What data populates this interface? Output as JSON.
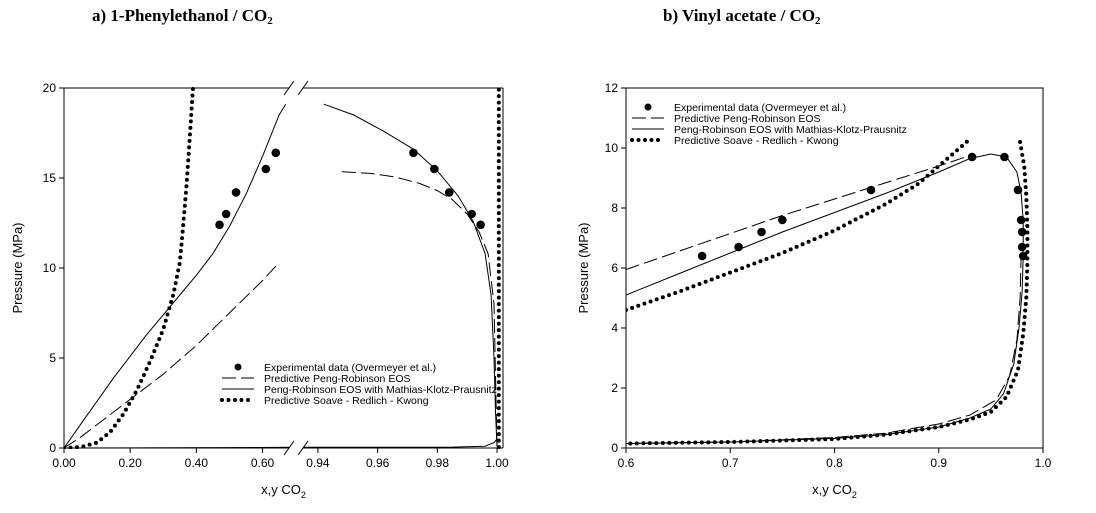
{
  "chart_data": [
    {
      "type": "line",
      "title": "a) 1-Phenylethanol / CO",
      "title_subscript": "2",
      "xlabel": "x,y CO",
      "xlabel_subscript": "2",
      "ylabel": "Pressure (MPa)",
      "broken_x_axis": true,
      "x_segments": [
        {
          "xlim": [
            0.0,
            0.68
          ],
          "ticks": [
            "0.00",
            "0.20",
            "0.40",
            "0.60"
          ],
          "tick_values": [
            0.0,
            0.2,
            0.4,
            0.6
          ]
        },
        {
          "xlim": [
            0.935,
            1.002
          ],
          "ticks": [
            "0.94",
            "0.96",
            "0.98",
            "1.00"
          ],
          "tick_values": [
            0.94,
            0.96,
            0.98,
            1.0
          ]
        }
      ],
      "ylim": [
        0,
        20
      ],
      "yticks": [
        "0",
        "5",
        "10",
        "15",
        "20"
      ],
      "ytick_values": [
        0,
        5,
        10,
        15,
        20
      ],
      "legend": "bottom-right",
      "series": [
        {
          "name": "Experimental data (Overmeyer et al.)",
          "style": "markers",
          "points": [
            [
              0.47,
              12.4
            ],
            [
              0.49,
              13.0
            ],
            [
              0.52,
              14.2
            ],
            [
              0.61,
              15.5
            ],
            [
              0.64,
              16.4
            ],
            [
              0.972,
              16.4
            ],
            [
              0.979,
              15.5
            ],
            [
              0.984,
              14.2
            ],
            [
              0.9915,
              13.0
            ],
            [
              0.9945,
              12.4
            ]
          ]
        },
        {
          "name": "Predictive Peng-Robinson EOS",
          "style": "dashed",
          "segments": [
            [
              [
                0,
                0
              ],
              [
                0.05,
                0.6
              ],
              [
                0.1,
                1.3
              ],
              [
                0.15,
                2.0
              ],
              [
                0.2,
                2.7
              ],
              [
                0.25,
                3.4
              ],
              [
                0.3,
                4.1
              ],
              [
                0.35,
                4.9
              ],
              [
                0.4,
                5.7
              ],
              [
                0.45,
                6.6
              ],
              [
                0.5,
                7.5
              ],
              [
                0.55,
                8.4
              ],
              [
                0.6,
                9.3
              ],
              [
                0.64,
                10.1
              ]
            ],
            [
              [
                0.948,
                15.35
              ],
              [
                0.958,
                15.25
              ],
              [
                0.966,
                15.05
              ],
              [
                0.974,
                14.7
              ],
              [
                0.98,
                14.3
              ],
              [
                0.985,
                13.8
              ],
              [
                0.99,
                13.0
              ],
              [
                0.994,
                12.0
              ],
              [
                0.997,
                10.8
              ],
              [
                0.999,
                8.0
              ],
              [
                0.9995,
                4.0
              ],
              [
                1.0,
                0.1
              ]
            ]
          ]
        },
        {
          "name": "Peng-Robinson EOS with Mathias-Klotz-Prausnitz",
          "style": "solid",
          "segments": [
            [
              [
                0,
                0
              ],
              [
                0.05,
                1.3
              ],
              [
                0.1,
                2.6
              ],
              [
                0.15,
                3.9
              ],
              [
                0.2,
                5.1
              ],
              [
                0.25,
                6.3
              ],
              [
                0.3,
                7.4
              ],
              [
                0.35,
                8.5
              ],
              [
                0.4,
                9.6
              ],
              [
                0.45,
                10.8
              ],
              [
                0.5,
                12.3
              ],
              [
                0.55,
                14.1
              ],
              [
                0.6,
                16.2
              ],
              [
                0.65,
                18.5
              ],
              [
                0.67,
                19.1
              ]
            ],
            [
              [
                0.942,
                19.1
              ],
              [
                0.952,
                18.5
              ],
              [
                0.962,
                17.6
              ],
              [
                0.972,
                16.6
              ],
              [
                0.98,
                15.4
              ],
              [
                0.987,
                14.0
              ],
              [
                0.992,
                12.6
              ],
              [
                0.996,
                10.8
              ],
              [
                0.998,
                8.5
              ],
              [
                0.999,
                5.0
              ],
              [
                0.9995,
                2.0
              ],
              [
                1.0,
                0.1
              ]
            ],
            [
              [
                0,
                0.0
              ],
              [
                0.6,
                0.03
              ],
              [
                0.68,
                0.04
              ]
            ],
            [
              [
                0.935,
                0.04
              ],
              [
                0.985,
                0.05
              ],
              [
                0.996,
                0.1
              ],
              [
                0.999,
                0.3
              ],
              [
                1.0,
                0.5
              ]
            ]
          ]
        },
        {
          "name": "Predictive Soave - Redlich - Kwong",
          "style": "dotted",
          "segments": [
            [
              [
                0,
                0
              ],
              [
                0.05,
                0.05
              ],
              [
                0.1,
                0.3
              ],
              [
                0.14,
                0.9
              ],
              [
                0.18,
                1.9
              ],
              [
                0.22,
                3.2
              ],
              [
                0.26,
                4.8
              ],
              [
                0.3,
                6.6
              ],
              [
                0.33,
                8.5
              ],
              [
                0.35,
                10.3
              ],
              [
                0.36,
                12.3
              ],
              [
                0.37,
                14.5
              ],
              [
                0.38,
                17.2
              ],
              [
                0.39,
                20.0
              ]
            ],
            [
              [
                1.0006,
                0.05
              ],
              [
                1.0006,
                5.0
              ],
              [
                1.0006,
                10.0
              ],
              [
                1.0006,
                15.0
              ],
              [
                1.0006,
                20.0
              ]
            ]
          ]
        }
      ]
    },
    {
      "type": "line",
      "title": "b) Vinyl acetate / CO",
      "title_subscript": "2",
      "xlabel": "x,y CO",
      "xlabel_subscript": "2",
      "ylabel": "Pressure (MPa)",
      "xlim": [
        0.6,
        1.0
      ],
      "xticks": [
        "0.6",
        "0.7",
        "0.8",
        "0.9",
        "1.0"
      ],
      "xtick_values": [
        0.6,
        0.7,
        0.8,
        0.9,
        1.0
      ],
      "ylim": [
        0,
        12
      ],
      "yticks": [
        "0",
        "2",
        "4",
        "6",
        "8",
        "10",
        "12"
      ],
      "ytick_values": [
        0,
        2,
        4,
        6,
        8,
        10,
        12
      ],
      "legend": "top-left",
      "series": [
        {
          "name": "Experimental data (Overmeyer et al.)",
          "style": "markers",
          "points": [
            [
              0.673,
              6.4
            ],
            [
              0.708,
              6.7
            ],
            [
              0.73,
              7.2
            ],
            [
              0.75,
              7.6
            ],
            [
              0.835,
              8.6
            ],
            [
              0.932,
              9.7
            ],
            [
              0.963,
              9.7
            ],
            [
              0.976,
              8.6
            ],
            [
              0.979,
              7.6
            ],
            [
              0.98,
              7.2
            ],
            [
              0.98,
              6.7
            ],
            [
              0.981,
              6.4
            ]
          ]
        },
        {
          "name": "Predictive Peng-Robinson EOS",
          "style": "dashed",
          "segments": [
            [
              [
                0.6,
                5.95
              ],
              [
                0.65,
                6.55
              ],
              [
                0.7,
                7.15
              ],
              [
                0.75,
                7.75
              ],
              [
                0.8,
                8.3
              ],
              [
                0.85,
                8.85
              ],
              [
                0.9,
                9.4
              ],
              [
                0.93,
                9.75
              ]
            ],
            [
              [
                0.6,
                0.15
              ],
              [
                0.7,
                0.2
              ],
              [
                0.8,
                0.35
              ],
              [
                0.85,
                0.5
              ],
              [
                0.9,
                0.8
              ],
              [
                0.93,
                1.1
              ],
              [
                0.955,
                1.6
              ],
              [
                0.968,
                2.4
              ],
              [
                0.975,
                3.6
              ],
              [
                0.978,
                5.0
              ],
              [
                0.979,
                6.4
              ]
            ]
          ]
        },
        {
          "name": "Peng-Robinson EOS with Mathias-Klotz-Prausnitz",
          "style": "solid",
          "segments": [
            [
              [
                0.6,
                5.1
              ],
              [
                0.65,
                5.8
              ],
              [
                0.7,
                6.5
              ],
              [
                0.75,
                7.2
              ],
              [
                0.8,
                7.85
              ],
              [
                0.85,
                8.5
              ],
              [
                0.9,
                9.2
              ],
              [
                0.93,
                9.65
              ],
              [
                0.95,
                9.8
              ],
              [
                0.965,
                9.7
              ],
              [
                0.975,
                9.2
              ],
              [
                0.979,
                8.5
              ],
              [
                0.981,
                7.6
              ],
              [
                0.981,
                6.4
              ],
              [
                0.98,
                5.2
              ],
              [
                0.977,
                4.0
              ],
              [
                0.972,
                2.8
              ],
              [
                0.962,
                1.8
              ],
              [
                0.95,
                1.3
              ],
              [
                0.93,
                1.0
              ],
              [
                0.9,
                0.7
              ],
              [
                0.85,
                0.45
              ],
              [
                0.8,
                0.32
              ],
              [
                0.7,
                0.2
              ],
              [
                0.6,
                0.15
              ]
            ]
          ]
        },
        {
          "name": "Predictive Soave - Redlich - Kwong",
          "style": "dotted",
          "segments": [
            [
              [
                0.6,
                4.6
              ],
              [
                0.65,
                5.2
              ],
              [
                0.7,
                5.85
              ],
              [
                0.75,
                6.5
              ],
              [
                0.8,
                7.25
              ],
              [
                0.85,
                8.15
              ],
              [
                0.88,
                8.8
              ],
              [
                0.9,
                9.4
              ],
              [
                0.92,
                10.0
              ],
              [
                0.93,
                10.3
              ]
            ],
            [
              [
                0.978,
                10.2
              ],
              [
                0.982,
                9.4
              ],
              [
                0.984,
                8.4
              ],
              [
                0.985,
                7.3
              ],
              [
                0.985,
                6.2
              ],
              [
                0.984,
                5.0
              ],
              [
                0.981,
                3.8
              ],
              [
                0.976,
                2.6
              ],
              [
                0.965,
                1.7
              ],
              [
                0.95,
                1.2
              ],
              [
                0.93,
                0.95
              ],
              [
                0.9,
                0.7
              ],
              [
                0.85,
                0.45
              ],
              [
                0.8,
                0.3
              ],
              [
                0.7,
                0.2
              ],
              [
                0.6,
                0.15
              ]
            ]
          ]
        }
      ]
    }
  ]
}
